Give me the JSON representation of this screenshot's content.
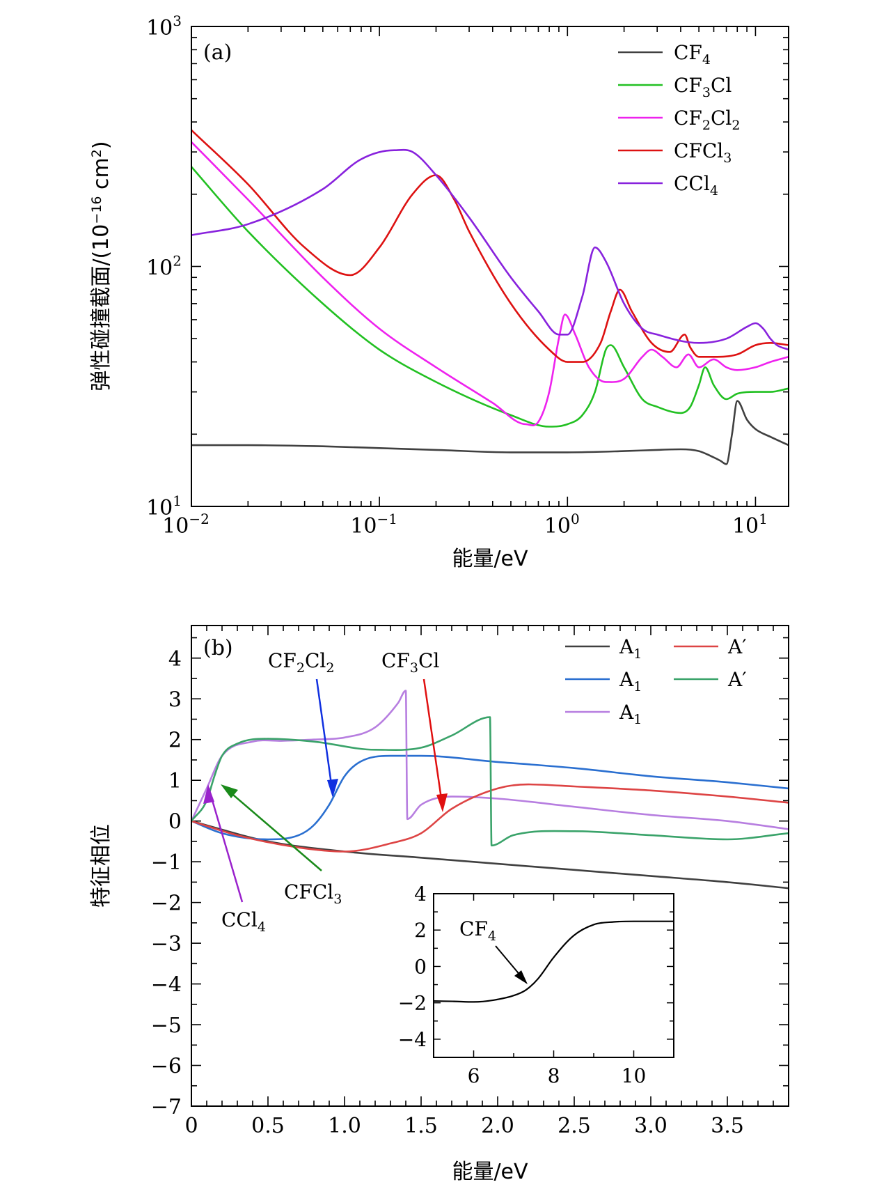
{
  "figure": {
    "chart_data": [
      {
        "panel": "(a)",
        "type": "line",
        "xlabel": "能量/eV",
        "ylabel": "弹性碰撞截面/(10−16 cm2)",
        "ylabel_main": "弹性碰撞截面/(10",
        "ylabel_exp": "−16",
        "ylabel_unit": " cm",
        "ylabel_sq": "2",
        "ylabel_close": ")",
        "xscale": "log",
        "yscale": "log",
        "xlim": [
          0.01,
          15
        ],
        "ylim": [
          10,
          1000
        ],
        "xticks": [
          {
            "value": 0.01,
            "base": "10",
            "exp": "−2"
          },
          {
            "value": 0.1,
            "base": "10",
            "exp": "−1"
          },
          {
            "value": 1,
            "base": "10",
            "exp": "0"
          },
          {
            "value": 10,
            "base": "10",
            "exp": "1"
          }
        ],
        "yticks": [
          {
            "value": 10,
            "base": "10",
            "exp": "1"
          },
          {
            "value": 100,
            "base": "10",
            "exp": "2"
          },
          {
            "value": 1000,
            "base": "10",
            "exp": "3"
          }
        ],
        "legend_position": "top-right",
        "series": [
          {
            "name": "CF4",
            "label_main": "CF",
            "label_sub": "4",
            "color": "#404040",
            "x": [
              0.01,
              0.02,
              0.05,
              0.1,
              0.2,
              0.5,
              1,
              2,
              3,
              4,
              5,
              6,
              6.5,
              7,
              7.5,
              8,
              9,
              10,
              12,
              15
            ],
            "y": [
              18,
              18,
              17.8,
              17.5,
              17.2,
              16.8,
              16.8,
              17,
              17.2,
              17.3,
              17,
              16,
              15.5,
              15,
              20,
              27.5,
              23,
              21,
              19.5,
              18
            ]
          },
          {
            "name": "CF3Cl",
            "label_main": "CF",
            "label_sub": "3",
            "label_tail": "Cl",
            "color": "#22c022",
            "x": [
              0.01,
              0.02,
              0.05,
              0.1,
              0.2,
              0.5,
              0.8,
              1,
              1.2,
              1.4,
              1.6,
              1.7,
              2,
              2.5,
              3,
              4,
              4.5,
              5,
              5.4,
              6,
              7,
              8,
              10,
              12,
              15
            ],
            "y": [
              260,
              140,
              70,
              45,
              33,
              24,
              21.5,
              22,
              24,
              30,
              45,
              47,
              38,
              28,
              26,
              24.5,
              26,
              32,
              38,
              32,
              28,
              29.5,
              30,
              30,
              31
            ]
          },
          {
            "name": "CF2Cl2",
            "label_main": "CF",
            "label_sub": "2",
            "label_tail": "Cl",
            "label_sub2": "2",
            "color": "#ee22ee",
            "x": [
              0.01,
              0.02,
              0.05,
              0.1,
              0.2,
              0.4,
              0.6,
              0.7,
              0.8,
              0.9,
              0.97,
              1.1,
              1.3,
              1.6,
              2,
              2.5,
              2.8,
              3.2,
              3.8,
              4.4,
              5,
              6,
              7,
              8,
              10,
              12,
              15
            ],
            "y": [
              330,
              190,
              90,
              55,
              38,
              27,
              22,
              22.5,
              30,
              50,
              63,
              52,
              38,
              33,
              34,
              42,
              45,
              42,
              38,
              43,
              38,
              41,
              38,
              37,
              38,
              40,
              42
            ]
          },
          {
            "name": "CFCl3",
            "label_main": "CFCl",
            "label_sub": "3",
            "color": "#dd1111",
            "x": [
              0.01,
              0.02,
              0.04,
              0.07,
              0.1,
              0.15,
              0.2,
              0.25,
              0.3,
              0.5,
              0.8,
              1,
              1.2,
              1.5,
              1.7,
              1.9,
              2.2,
              2.8,
              3.5,
              4.2,
              4.5,
              5,
              6,
              8,
              10,
              12,
              15
            ],
            "y": [
              370,
              220,
              120,
              92,
              120,
              200,
              240,
              190,
              140,
              70,
              45,
              40,
              40,
              48,
              65,
              80,
              65,
              48,
              44,
              52,
              46,
              42,
              42,
              43,
              47,
              48,
              47
            ]
          },
          {
            "name": "CCl4",
            "label_main": "CCl",
            "label_sub": "4",
            "color": "#8822dd",
            "x": [
              0.01,
              0.02,
              0.05,
              0.08,
              0.12,
              0.15,
              0.2,
              0.3,
              0.5,
              0.7,
              0.9,
              1,
              1.2,
              1.4,
              1.6,
              2,
              2.5,
              3,
              5,
              7,
              9,
              10,
              11,
              12,
              13,
              15
            ],
            "y": [
              135,
              150,
              210,
              280,
              305,
              300,
              240,
              160,
              90,
              65,
              52,
              52,
              75,
              120,
              105,
              70,
              55,
              52,
              48,
              50,
              56,
              58,
              55,
              50,
              47,
              45
            ]
          }
        ]
      },
      {
        "panel": "(b)",
        "type": "line",
        "xlabel": "能量/eV",
        "ylabel": "特征相位",
        "xlim": [
          0,
          3.9
        ],
        "ylim": [
          -7,
          4.8
        ],
        "xticks": [
          "0",
          "0.5",
          "1.0",
          "1.5",
          "2.0",
          "2.5",
          "3.0",
          "3.5"
        ],
        "yticks": [
          "−7",
          "−6",
          "−5",
          "−4",
          "−3",
          "−2",
          "−1",
          "0",
          "1",
          "2",
          "3",
          "4"
        ],
        "legend_position": "top-right",
        "series": [
          {
            "name": "A1",
            "label_main": "A",
            "label_sub": "1",
            "color": "#404040",
            "x": [
              0,
              0.5,
              1,
              1.5,
              2,
              2.5,
              3,
              3.5,
              3.9
            ],
            "y": [
              0,
              -0.5,
              -0.75,
              -0.9,
              -1.05,
              -1.2,
              -1.35,
              -1.5,
              -1.65
            ]
          },
          {
            "name": "A1",
            "label_main": "A",
            "label_sub": "1",
            "color": "#2a6fd0",
            "x": [
              0,
              0.2,
              0.5,
              0.7,
              0.8,
              0.9,
              1,
              1.1,
              1.3,
              1.5,
              2,
              2.5,
              3,
              3.5,
              3.9
            ],
            "y": [
              0,
              -0.3,
              -0.45,
              -0.35,
              -0.1,
              0.4,
              1.1,
              1.45,
              1.6,
              1.6,
              1.45,
              1.3,
              1.1,
              0.95,
              0.8
            ]
          },
          {
            "name": "A1",
            "label_main": "A",
            "label_sub": "1",
            "color": "#b77ee0",
            "x": [
              0,
              0.1,
              0.2,
              0.4,
              0.6,
              0.8,
              1,
              1.2,
              1.35,
              1.4,
              1.41,
              1.5,
              1.7,
              2,
              2.5,
              3,
              3.5,
              3.9
            ],
            "y": [
              0,
              0.8,
              1.6,
              1.95,
              1.97,
              2,
              2.05,
              2.3,
              2.9,
              3.2,
              0.05,
              0.4,
              0.6,
              0.55,
              0.35,
              0.15,
              0,
              -0.2
            ]
          },
          {
            "name": "A′",
            "label_main": "A′",
            "label_sub": "",
            "color": "#dd4444",
            "x": [
              0,
              0.3,
              0.7,
              1,
              1.3,
              1.5,
              1.7,
              2,
              2.2,
              2.5,
              3,
              3.5,
              3.9
            ],
            "y": [
              0,
              -0.35,
              -0.65,
              -0.75,
              -0.55,
              -0.3,
              0.3,
              0.8,
              0.9,
              0.85,
              0.75,
              0.6,
              0.45
            ]
          },
          {
            "name": "A′",
            "label_main": "A′",
            "label_sub": "",
            "color": "#3aa36a",
            "x": [
              0,
              0.1,
              0.15,
              0.2,
              0.3,
              0.5,
              0.8,
              1.2,
              1.5,
              1.7,
              1.95,
              1.96,
              2.1,
              2.5,
              3,
              3.5,
              3.9
            ],
            "y": [
              0,
              0.5,
              1.1,
              1.6,
              1.9,
              2.02,
              1.95,
              1.75,
              1.8,
              2.1,
              2.55,
              -0.6,
              -0.35,
              -0.25,
              -0.35,
              -0.45,
              -0.3
            ]
          }
        ],
        "annotations": [
          {
            "label_main": "CF",
            "label_sub": "2",
            "label_tail": "Cl",
            "label_sub2": "2",
            "color": "#1030e0"
          },
          {
            "label_main": "CF",
            "label_sub": "3",
            "label_tail": "Cl",
            "color": "#e01010"
          },
          {
            "label_main": "CFCl",
            "label_sub": "3",
            "color": "#1a8a1a"
          },
          {
            "label_main": "CCl",
            "label_sub": "4",
            "color": "#9a22cc"
          }
        ],
        "inset": {
          "type": "line",
          "xlim": [
            5,
            11
          ],
          "ylim": [
            -5,
            4
          ],
          "xticks": [
            "6",
            "8",
            "10"
          ],
          "yticks": [
            "4",
            "2",
            "0",
            "−2",
            "−4"
          ],
          "annotation": {
            "label_main": "CF",
            "label_sub": "4"
          },
          "series": [
            {
              "name": "CF4",
              "color": "#000000",
              "x": [
                5,
                5.5,
                6,
                6.5,
                7,
                7.3,
                7.6,
                8,
                8.5,
                9,
                9.5,
                10,
                10.5,
                11
              ],
              "y": [
                -1.9,
                -1.92,
                -1.95,
                -1.85,
                -1.6,
                -1.3,
                -0.7,
                0.5,
                1.7,
                2.3,
                2.45,
                2.48,
                2.48,
                2.48
              ]
            }
          ]
        }
      }
    ]
  }
}
